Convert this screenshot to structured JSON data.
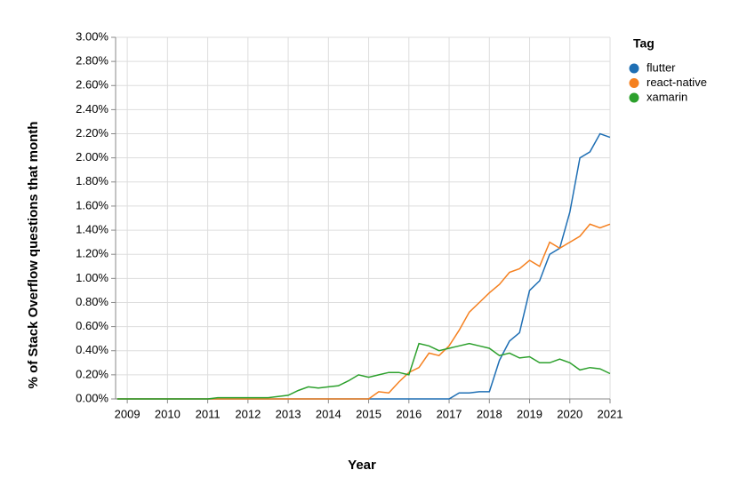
{
  "chart_data": {
    "type": "line",
    "x_label": "Year",
    "y_label": "% of Stack Overflow questions that month",
    "legend_title": "Tag",
    "legend": "right",
    "grid": true,
    "x": [
      2008.75,
      2009.0,
      2009.25,
      2009.5,
      2009.75,
      2010.0,
      2010.25,
      2010.5,
      2010.75,
      2011.0,
      2011.25,
      2011.5,
      2011.75,
      2012.0,
      2012.25,
      2012.5,
      2012.75,
      2013.0,
      2013.25,
      2013.5,
      2013.75,
      2014.0,
      2014.25,
      2014.5,
      2014.75,
      2015.0,
      2015.25,
      2015.5,
      2015.75,
      2016.0,
      2016.25,
      2016.5,
      2016.75,
      2017.0,
      2017.25,
      2017.5,
      2017.75,
      2018.0,
      2018.25,
      2018.5,
      2018.75,
      2019.0,
      2019.25,
      2019.5,
      2019.75,
      2020.0,
      2020.25,
      2020.5,
      2020.75,
      2021.0
    ],
    "xlim": [
      2008.71,
      2021
    ],
    "xticks": [
      2009,
      2010,
      2011,
      2012,
      2013,
      2014,
      2015,
      2016,
      2017,
      2018,
      2019,
      2020,
      2021
    ],
    "ylim": [
      0,
      3
    ],
    "yticks": [
      {
        "value": 0,
        "label": "0.00%"
      },
      {
        "value": 0.2,
        "label": "0.20%"
      },
      {
        "value": 0.4,
        "label": "0.40%"
      },
      {
        "value": 0.6,
        "label": "0.60%"
      },
      {
        "value": 0.8,
        "label": "0.80%"
      },
      {
        "value": 1.0,
        "label": "1.00%"
      },
      {
        "value": 1.2,
        "label": "1.20%"
      },
      {
        "value": 1.4,
        "label": "1.40%"
      },
      {
        "value": 1.6,
        "label": "1.60%"
      },
      {
        "value": 1.8,
        "label": "1.80%"
      },
      {
        "value": 2.0,
        "label": "2.00%"
      },
      {
        "value": 2.2,
        "label": "2.20%"
      },
      {
        "value": 2.4,
        "label": "2.40%"
      },
      {
        "value": 2.6,
        "label": "2.60%"
      },
      {
        "value": 2.8,
        "label": "2.80%"
      },
      {
        "value": 3.0,
        "label": "3.00%"
      }
    ],
    "series": [
      {
        "name": "flutter",
        "color": "#1f6fb4",
        "values": [
          0,
          0,
          0,
          0,
          0,
          0,
          0,
          0,
          0,
          0,
          0,
          0,
          0,
          0,
          0,
          0,
          0,
          0,
          0,
          0,
          0,
          0,
          0,
          0,
          0,
          0,
          0,
          0,
          0,
          0,
          0,
          0,
          0,
          0,
          0.05,
          0.05,
          0.06,
          0.06,
          0.32,
          0.48,
          0.55,
          0.9,
          0.98,
          1.2,
          1.25,
          1.55,
          2.0,
          2.05,
          2.2,
          2.17
        ]
      },
      {
        "name": "react-native",
        "color": "#f5801f",
        "values": [
          0,
          0,
          0,
          0,
          0,
          0,
          0,
          0,
          0,
          0,
          0,
          0,
          0,
          0,
          0,
          0,
          0,
          0,
          0,
          0,
          0,
          0,
          0,
          0,
          0,
          0,
          0.06,
          0.05,
          0.14,
          0.22,
          0.26,
          0.38,
          0.36,
          0.44,
          0.57,
          0.72,
          0.8,
          0.88,
          0.95,
          1.05,
          1.08,
          1.15,
          1.1,
          1.3,
          1.25,
          1.3,
          1.35,
          1.45,
          1.42,
          1.45
        ]
      },
      {
        "name": "xamarin",
        "color": "#2ca02c",
        "values": [
          0,
          0,
          0,
          0,
          0,
          0,
          0,
          0,
          0,
          0,
          0.01,
          0.01,
          0.01,
          0.01,
          0.01,
          0.01,
          0.02,
          0.03,
          0.07,
          0.1,
          0.09,
          0.1,
          0.11,
          0.15,
          0.2,
          0.18,
          0.2,
          0.22,
          0.22,
          0.2,
          0.46,
          0.44,
          0.4,
          0.42,
          0.44,
          0.46,
          0.44,
          0.42,
          0.36,
          0.38,
          0.34,
          0.35,
          0.3,
          0.3,
          0.33,
          0.3,
          0.24,
          0.26,
          0.25,
          0.21
        ]
      }
    ]
  }
}
